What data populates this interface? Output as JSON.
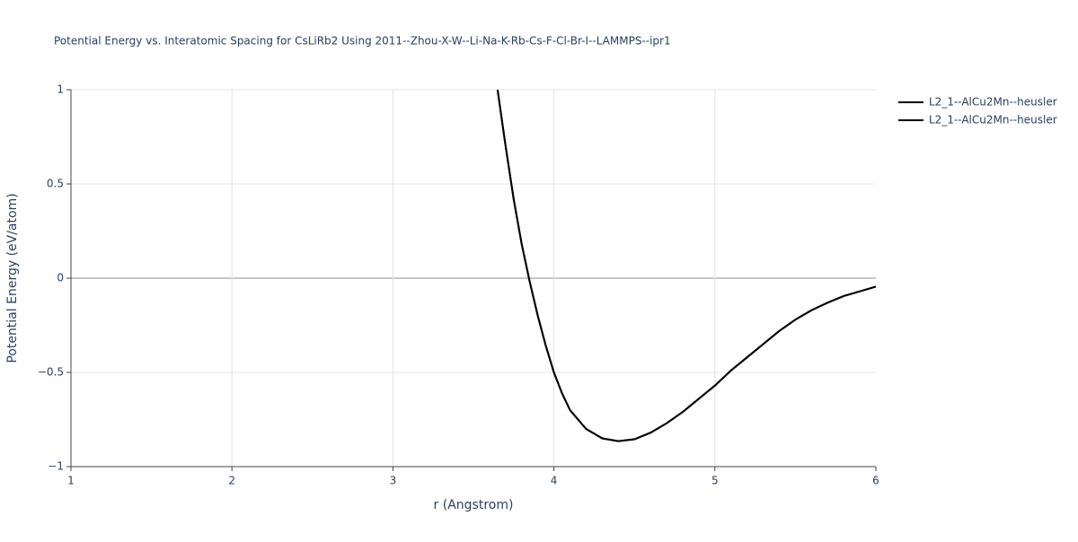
{
  "chart_data": {
    "type": "line",
    "title": "Potential Energy vs. Interatomic Spacing for CsLiRb2 Using 2011--Zhou-X-W--Li-Na-K-Rb-Cs-F-Cl-Br-I--LAMMPS--ipr1",
    "x_label": "r (Angstrom)",
    "y_label": "Potential Energy (eV/atom)",
    "x": [
      3.65,
      3.7,
      3.75,
      3.8,
      3.85,
      3.9,
      3.95,
      4.0,
      4.05,
      4.1,
      4.2,
      4.3,
      4.4,
      4.5,
      4.6,
      4.7,
      4.8,
      4.9,
      5.0,
      5.1,
      5.2,
      5.3,
      5.4,
      5.5,
      5.6,
      5.7,
      5.8,
      5.9,
      6.0
    ],
    "series": [
      {
        "name": "L2_1--AlCu2Mn--heusler",
        "color": "#000000",
        "values": [
          1.0,
          0.7,
          0.42,
          0.18,
          -0.02,
          -0.2,
          -0.36,
          -0.5,
          -0.61,
          -0.7,
          -0.8,
          -0.85,
          -0.865,
          -0.855,
          -0.82,
          -0.77,
          -0.71,
          -0.64,
          -0.57,
          -0.49,
          -0.42,
          -0.35,
          -0.28,
          -0.22,
          -0.17,
          -0.13,
          -0.095,
          -0.07,
          -0.045
        ]
      },
      {
        "name": "L2_1--AlCu2Mn--heusler",
        "color": "#000000",
        "values": [
          1.0,
          0.7,
          0.42,
          0.18,
          -0.02,
          -0.2,
          -0.36,
          -0.5,
          -0.61,
          -0.7,
          -0.8,
          -0.85,
          -0.865,
          -0.855,
          -0.82,
          -0.77,
          -0.71,
          -0.64,
          -0.57,
          -0.49,
          -0.42,
          -0.35,
          -0.28,
          -0.22,
          -0.17,
          -0.13,
          -0.095,
          -0.07,
          -0.045
        ]
      }
    ],
    "xlim": [
      1,
      6
    ],
    "xticks": [
      1,
      2,
      3,
      4,
      5,
      6
    ],
    "ylim": [
      -1,
      1
    ],
    "yticks": [
      {
        "value": -1,
        "label": "−1"
      },
      {
        "value": -0.5,
        "label": "−0.5"
      },
      0,
      0.5,
      1
    ],
    "grid": true
  }
}
